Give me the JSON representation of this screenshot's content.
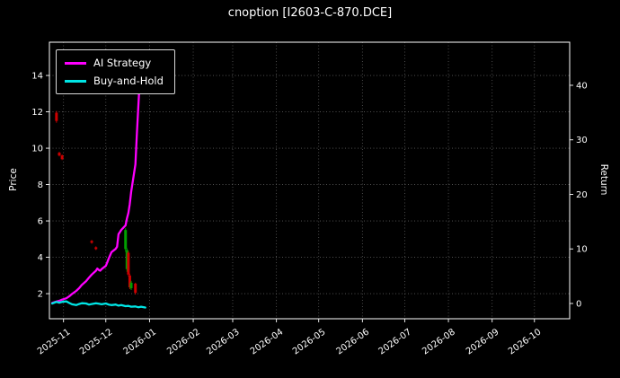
{
  "chart_data": {
    "type": "line",
    "title": "cnoption [I2603-C-870.DCE]",
    "ylabel_left": "Price",
    "ylabel_right": "Return",
    "x_domain": [
      "2025-10-22",
      "2026-10-26"
    ],
    "left_range": [
      0.62,
      15.83
    ],
    "right_range": [
      -2.8,
      47.9
    ],
    "left_ticks": [
      2,
      4,
      6,
      8,
      10,
      12,
      14
    ],
    "right_ticks": [
      0,
      10,
      20,
      30,
      40
    ],
    "x_ticks": [
      "2025-11",
      "2025-12",
      "2026-01",
      "2026-02",
      "2026-03",
      "2026-04",
      "2026-05",
      "2026-06",
      "2026-07",
      "2026-08",
      "2026-09",
      "2026-10"
    ],
    "grid": true,
    "legend_position": "upper-left",
    "candle_up_color": "#00a000",
    "candle_down_color": "#cc0000",
    "series": [
      {
        "name": "AI Strategy",
        "color": "#ff00ff",
        "axis": "right",
        "points": [
          [
            "2025-10-24",
            0.1
          ],
          [
            "2025-10-27",
            0.35
          ],
          [
            "2025-10-29",
            0.5
          ],
          [
            "2025-10-31",
            0.7
          ],
          [
            "2025-11-03",
            0.95
          ],
          [
            "2025-11-05",
            1.3
          ],
          [
            "2025-11-07",
            1.75
          ],
          [
            "2025-11-10",
            2.3
          ],
          [
            "2025-11-12",
            2.8
          ],
          [
            "2025-11-14",
            3.4
          ],
          [
            "2025-11-17",
            4.1
          ],
          [
            "2025-11-19",
            4.7
          ],
          [
            "2025-11-21",
            5.3
          ],
          [
            "2025-11-24",
            6.0
          ],
          [
            "2025-11-25",
            6.4
          ],
          [
            "2025-11-26",
            6.15
          ],
          [
            "2025-11-27",
            6.0
          ],
          [
            "2025-11-28",
            6.3
          ],
          [
            "2025-12-01",
            6.9
          ],
          [
            "2025-12-02",
            7.5
          ],
          [
            "2025-12-03",
            8.2
          ],
          [
            "2025-12-04",
            8.8
          ],
          [
            "2025-12-05",
            9.4
          ],
          [
            "2025-12-08",
            10.0
          ],
          [
            "2025-12-09",
            10.4
          ],
          [
            "2025-12-10",
            12.7
          ],
          [
            "2025-12-11",
            13.1
          ],
          [
            "2025-12-12",
            13.5
          ],
          [
            "2025-12-15",
            14.3
          ],
          [
            "2025-12-16",
            15.6
          ],
          [
            "2025-12-17",
            16.6
          ],
          [
            "2025-12-18",
            18.2
          ],
          [
            "2025-12-19",
            20.5
          ],
          [
            "2025-12-22",
            25.5
          ],
          [
            "2025-12-23",
            31.0
          ],
          [
            "2025-12-24",
            36.0
          ],
          [
            "2025-12-25",
            40.5
          ],
          [
            "2025-12-26",
            44.0
          ],
          [
            "2025-12-29",
            43.2
          ],
          [
            "2025-12-30",
            44.6
          ]
        ]
      },
      {
        "name": "Buy-and-Hold",
        "color": "#00e5e5",
        "axis": "right",
        "points": [
          [
            "2025-10-24",
            0.0
          ],
          [
            "2025-10-27",
            0.3
          ],
          [
            "2025-10-29",
            0.15
          ],
          [
            "2025-10-31",
            0.3
          ],
          [
            "2025-11-03",
            0.4
          ],
          [
            "2025-11-05",
            0.1
          ],
          [
            "2025-11-07",
            -0.15
          ],
          [
            "2025-11-10",
            -0.3
          ],
          [
            "2025-11-12",
            -0.1
          ],
          [
            "2025-11-14",
            0.05
          ],
          [
            "2025-11-17",
            0.0
          ],
          [
            "2025-11-19",
            -0.2
          ],
          [
            "2025-11-21",
            -0.1
          ],
          [
            "2025-11-24",
            0.05
          ],
          [
            "2025-11-26",
            -0.05
          ],
          [
            "2025-11-28",
            -0.15
          ],
          [
            "2025-12-01",
            0.0
          ],
          [
            "2025-12-03",
            -0.2
          ],
          [
            "2025-12-05",
            -0.3
          ],
          [
            "2025-12-08",
            -0.2
          ],
          [
            "2025-12-10",
            -0.4
          ],
          [
            "2025-12-12",
            -0.3
          ],
          [
            "2025-12-15",
            -0.5
          ],
          [
            "2025-12-17",
            -0.45
          ],
          [
            "2025-12-19",
            -0.6
          ],
          [
            "2025-12-22",
            -0.55
          ],
          [
            "2025-12-24",
            -0.7
          ],
          [
            "2025-12-26",
            -0.6
          ],
          [
            "2025-12-29",
            -0.75
          ]
        ]
      }
    ],
    "candles": [
      {
        "d": "2025-10-27",
        "o": 11.95,
        "h": 12.05,
        "l": 11.4,
        "c": 11.5
      },
      {
        "d": "2025-10-29",
        "o": 9.75,
        "h": 9.8,
        "l": 9.55,
        "c": 9.6
      },
      {
        "d": "2025-10-31",
        "o": 9.6,
        "h": 9.65,
        "l": 9.35,
        "c": 9.4
      },
      {
        "d": "2025-11-21",
        "o": 4.9,
        "h": 4.95,
        "l": 4.75,
        "c": 4.8
      },
      {
        "d": "2025-11-24",
        "o": 4.55,
        "h": 4.6,
        "l": 4.4,
        "c": 4.45
      },
      {
        "d": "2025-12-15",
        "o": 4.45,
        "h": 5.6,
        "l": 4.3,
        "c": 5.5
      },
      {
        "d": "2025-12-16",
        "o": 3.35,
        "h": 4.5,
        "l": 3.2,
        "c": 4.4
      },
      {
        "d": "2025-12-17",
        "o": 4.25,
        "h": 4.35,
        "l": 2.95,
        "c": 3.05
      },
      {
        "d": "2025-12-18",
        "o": 3.0,
        "h": 3.1,
        "l": 2.25,
        "c": 2.35
      },
      {
        "d": "2025-12-19",
        "o": 2.3,
        "h": 2.7,
        "l": 2.2,
        "c": 2.6
      },
      {
        "d": "2025-12-22",
        "o": 2.55,
        "h": 2.6,
        "l": 1.95,
        "c": 2.05
      }
    ]
  }
}
